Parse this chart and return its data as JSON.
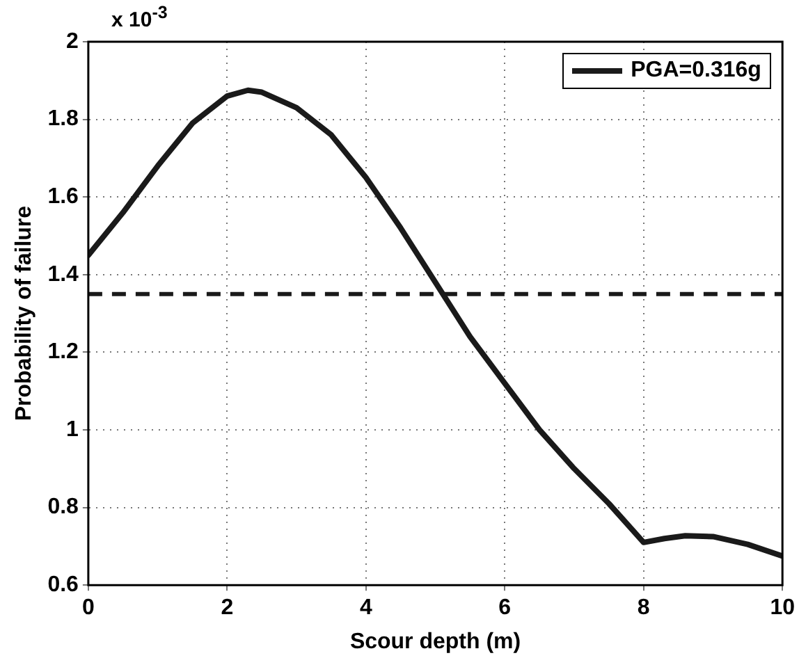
{
  "chart_data": {
    "type": "line",
    "xlabel": "Scour depth (m)",
    "ylabel": "Probability of failure",
    "annotations": [
      "x 10$^{-3}$"
    ],
    "series": [
      {
        "name": "PGA=0.316g",
        "color": "#1a1a1a",
        "x": [
          0,
          0.5,
          1,
          1.5,
          2,
          2.3,
          2.5,
          3,
          3.5,
          4,
          4.5,
          5,
          5.5,
          6,
          6.5,
          7,
          7.5,
          8,
          8.3,
          8.6,
          9,
          9.5,
          10
        ],
        "values": [
          1.45,
          1.56,
          1.68,
          1.79,
          1.86,
          1.875,
          1.87,
          1.83,
          1.76,
          1.65,
          1.52,
          1.38,
          1.24,
          1.12,
          1.0,
          0.9,
          0.81,
          0.71,
          0.72,
          0.727,
          0.725,
          0.705,
          0.675
        ]
      }
    ],
    "ref_lines": [
      {
        "axis": "y",
        "value": 1.35,
        "color": "#1a1a1a",
        "line_style": "dashed"
      }
    ],
    "xlim": [
      0,
      10
    ],
    "xticks": [
      0,
      2,
      4,
      6,
      8,
      10
    ],
    "ylim": [
      0.6,
      2
    ],
    "yticks": [
      0.6,
      0.8,
      1,
      1.2,
      1.4,
      1.6,
      1.8,
      2
    ],
    "grid": true,
    "legend": "top right",
    "marker": "none",
    "line_style": "solid"
  }
}
